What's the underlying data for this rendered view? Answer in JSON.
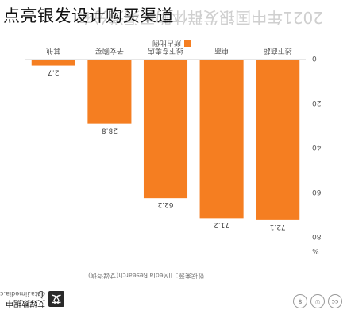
{
  "overlay_title": "点亮银发设计购买渠道",
  "chart_data": {
    "type": "bar",
    "title": "2021年中国银发群体购买渠道分布",
    "categories": [
      "线下商超",
      "电商",
      "线下专卖店",
      "子女购买",
      "其他"
    ],
    "values": [
      72.1,
      71.2,
      62.2,
      28.8,
      2.7
    ],
    "value_labels": [
      "72.1",
      "71.2",
      "62.2",
      "28.8",
      "2.7"
    ],
    "ylim": [
      0,
      80
    ],
    "yticks": [
      0,
      20,
      40,
      60,
      80
    ],
    "unit": "%",
    "legend": [
      "所占比例"
    ],
    "grid": false,
    "bar_color": "#f57e21"
  },
  "footer": {
    "source": "数据来源：iiMedia Research(艾媒咨询)",
    "brand_logo": "艾",
    "brand_name": "艾媒数据中心",
    "brand_domain": "data.iimedia.cn",
    "icons": [
      "creative-commons-icon",
      "attribution-icon",
      "noncommercial-icon"
    ],
    "icon_glyphs": [
      "cc",
      "①",
      "$"
    ]
  }
}
